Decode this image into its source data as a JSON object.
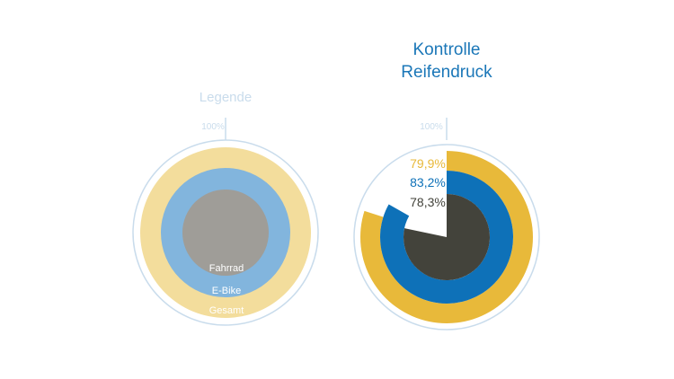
{
  "legend_panel": {
    "title": "Legende",
    "full_scale_label": "100%",
    "ring_labels": [
      "Fahrrad",
      "E-Bike",
      "Gesamt"
    ]
  },
  "chart_data": {
    "type": "radial-bar",
    "title_line1": "Kontrolle",
    "title_line2": "Reifendruck",
    "full_scale_label": "100%",
    "max": 100,
    "series": [
      {
        "name": "Gesamt",
        "value": 79.9,
        "label": "79,9%",
        "color": "#e8b93a"
      },
      {
        "name": "E-Bike",
        "value": 83.2,
        "label": "83,2%",
        "color": "#0e71b8"
      },
      {
        "name": "Fahrrad",
        "value": 78.3,
        "label": "78,3%",
        "color": "#43433b"
      }
    ]
  },
  "colors": {
    "title": "#1b77b8",
    "legend_title": "#c9dcec",
    "outline": "#c9dcec",
    "gesamt_light": "#f3dd9c",
    "ebike_light": "#82b5dd",
    "fahrrad_light": "#9f9d98",
    "legend_text": "#ffffff"
  }
}
